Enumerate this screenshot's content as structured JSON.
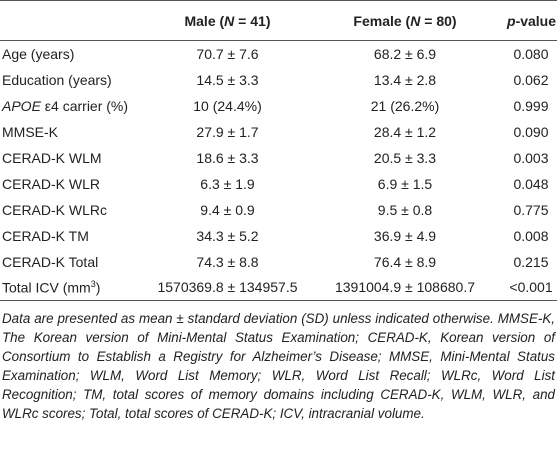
{
  "table": {
    "header": [
      [
        "Male (",
        "N",
        " = 41)"
      ],
      [
        "Female (",
        "N",
        " = 80)"
      ],
      [
        "p",
        "-value"
      ]
    ],
    "rows": [
      [
        [
          "Age (years)"
        ],
        "70.7 ± 7.6",
        "68.2 ± 6.9",
        "0.080"
      ],
      [
        [
          "Education (years)"
        ],
        "14.5 ± 3.3",
        "13.4 ± 2.8",
        "0.062"
      ],
      [
        [
          "APOE",
          " ε4 carrier (%)"
        ],
        "10 (24.4%)",
        "21 (26.2%)",
        "0.999"
      ],
      [
        [
          "MMSE-K"
        ],
        "27.9 ± 1.7",
        "28.4 ± 1.2",
        "0.090"
      ],
      [
        [
          "CERAD-K WLM"
        ],
        "18.6 ± 3.3",
        "20.5 ± 3.3",
        "0.003"
      ],
      [
        [
          "CERAD-K WLR"
        ],
        "6.3 ± 1.9",
        "6.9 ± 1.5",
        "0.048"
      ],
      [
        [
          "CERAD-K WLRc"
        ],
        "9.4 ± 0.9",
        "9.5 ± 0.8",
        "0.775"
      ],
      [
        [
          "CERAD-K TM"
        ],
        "34.3 ± 5.2",
        "36.9 ± 4.9",
        "0.008"
      ],
      [
        [
          "CERAD-K Total"
        ],
        "74.3 ± 8.8",
        "76.4 ± 8.9",
        "0.215"
      ],
      [
        [
          "Total ICV (mm",
          "3",
          ")"
        ],
        "1570369.8 ± 134957.5",
        "1391004.9 ± 108680.7",
        "<0.001"
      ]
    ]
  },
  "footnote": "Data are presented as mean ± standard deviation (SD) unless indicated otherwise. MMSE-K, The Korean version of Mini-Mental Status Examination; CERAD-K, Korean version of Consortium to Establish a Registry for Alzheimer’s Disease; MMSE, Mini-Mental Status Examination; WLM, Word List Memory; WLR, Word List Recall; WLRc, Word List Recognition; TM, total scores of memory domains including CERAD-K, WLM, WLR, and WLRc scores; Total, total scores of CERAD-K; ICV, intracranial volume."
}
